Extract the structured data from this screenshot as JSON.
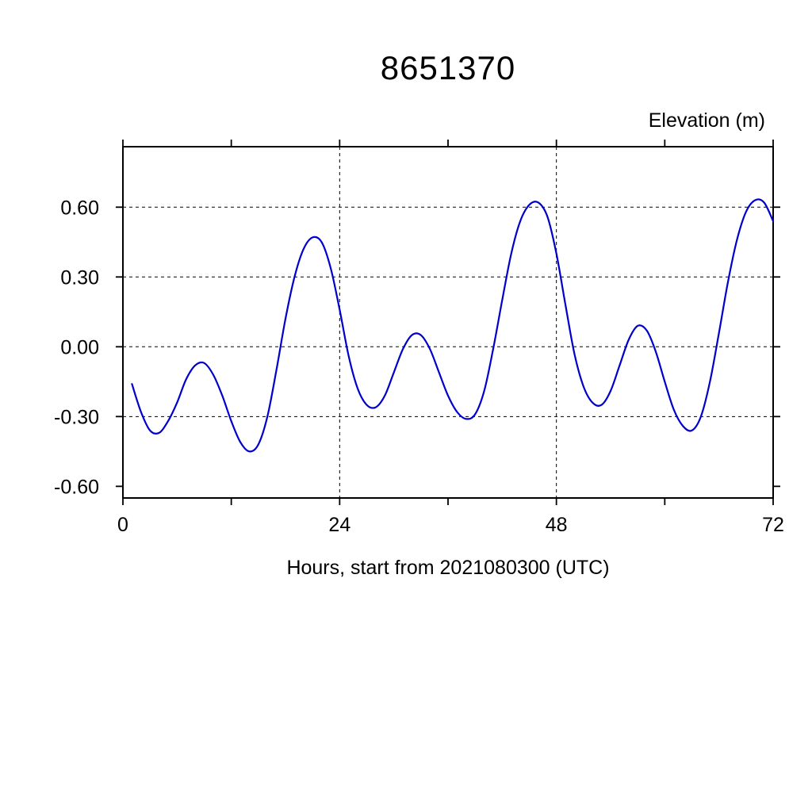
{
  "chart_data": {
    "type": "line",
    "title": "8651370",
    "ylabel": "Elevation (m)",
    "xlabel": "Hours, start from 2021080300 (UTC)",
    "xlim": [
      0,
      72
    ],
    "ylim": [
      -0.65,
      0.86
    ],
    "xticks": [
      0,
      12,
      24,
      36,
      48,
      60,
      72
    ],
    "xtick_labeled": [
      0,
      24,
      48,
      72
    ],
    "xtick_labels": [
      "0",
      "24",
      "48",
      "72"
    ],
    "yticks": [
      -0.6,
      -0.3,
      0,
      0.3,
      0.6
    ],
    "ytick_labels": [
      "-0.60",
      "-0.30",
      "0.00",
      "0.30",
      "0.60"
    ],
    "grid_x": [
      24,
      48
    ],
    "grid_y": [
      -0.3,
      0,
      0.3,
      0.6
    ],
    "grid_on": true,
    "line_color": "#0000cd",
    "axis_color": "#000000",
    "series": [
      {
        "name": "Elevation",
        "x": [
          1,
          2,
          3,
          4,
          5,
          6,
          7,
          8,
          9,
          10,
          11,
          12,
          13,
          14,
          15,
          16,
          17,
          18,
          19,
          20,
          21,
          22,
          23,
          24,
          25,
          26,
          27,
          28,
          29,
          30,
          31,
          32,
          33,
          34,
          35,
          36,
          37,
          38,
          39,
          40,
          41,
          42,
          43,
          44,
          45,
          46,
          47,
          48,
          49,
          50,
          51,
          52,
          53,
          54,
          55,
          56,
          57,
          58,
          59,
          60,
          61,
          62,
          63,
          64,
          65,
          66,
          67,
          68,
          69,
          70,
          71,
          72
        ],
        "y": [
          -0.16,
          -0.28,
          -0.36,
          -0.37,
          -0.32,
          -0.24,
          -0.14,
          -0.08,
          -0.07,
          -0.12,
          -0.21,
          -0.32,
          -0.41,
          -0.45,
          -0.42,
          -0.3,
          -0.1,
          0.12,
          0.3,
          0.42,
          0.47,
          0.45,
          0.34,
          0.16,
          -0.04,
          -0.18,
          -0.25,
          -0.26,
          -0.21,
          -0.11,
          -0.01,
          0.05,
          0.05,
          -0.01,
          -0.11,
          -0.21,
          -0.28,
          -0.31,
          -0.29,
          -0.19,
          -0.01,
          0.2,
          0.4,
          0.54,
          0.61,
          0.62,
          0.56,
          0.4,
          0.18,
          -0.03,
          -0.17,
          -0.24,
          -0.25,
          -0.19,
          -0.08,
          0.03,
          0.09,
          0.07,
          -0.02,
          -0.15,
          -0.27,
          -0.34,
          -0.36,
          -0.3,
          -0.15,
          0.06,
          0.28,
          0.46,
          0.58,
          0.63,
          0.62,
          0.54
        ]
      }
    ]
  }
}
